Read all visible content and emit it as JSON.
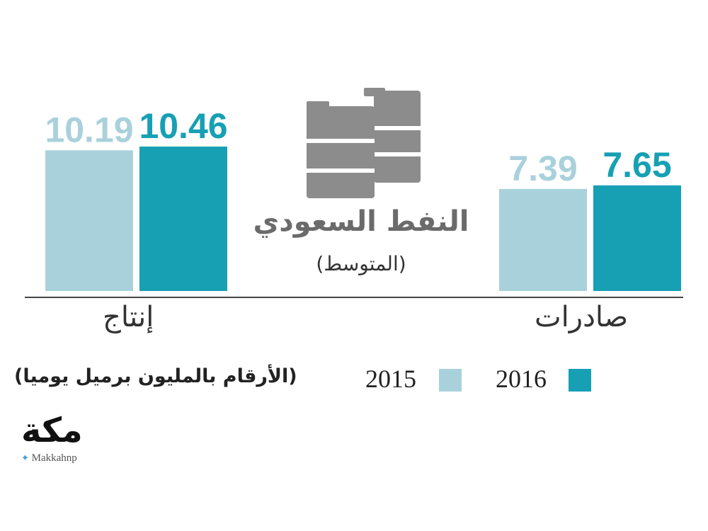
{
  "title": "النفط السعودي",
  "subtitle": "(المتوسط)",
  "note": "(الأرقام بالمليون برميل يوميا)",
  "logo": {
    "text": "مكة",
    "handle": "Makkahnp"
  },
  "colors": {
    "y2015": "#a9d1dc",
    "y2016": "#17a0b4",
    "barrel": "#8c8c8c",
    "axis": "#444444"
  },
  "chart_data": {
    "type": "bar",
    "categories": [
      "إنتاج",
      "صادرات"
    ],
    "series": [
      {
        "name": "2015",
        "values": [
          10.19,
          7.39
        ]
      },
      {
        "name": "2016",
        "values": [
          10.46,
          7.65
        ]
      }
    ],
    "value_labels": [
      [
        "10.19",
        "7.39"
      ],
      [
        "10.46",
        "7.65"
      ]
    ],
    "legend": [
      "2015",
      "2016"
    ]
  }
}
